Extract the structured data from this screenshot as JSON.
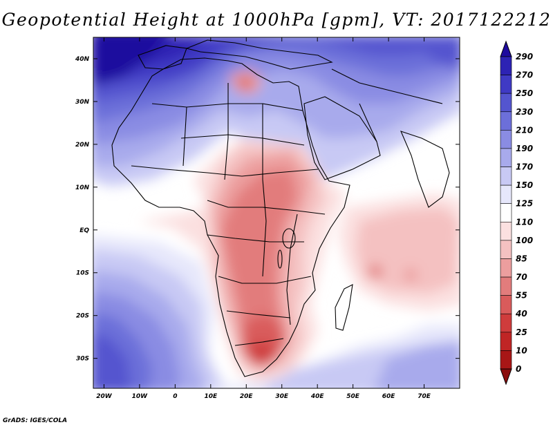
{
  "title": "Geopotential Height at 1000hPa [gpm], VT: 2017122212",
  "credit": "GrADS: IGES/COLA",
  "map": {
    "lon_range": [
      -23,
      80
    ],
    "lat_range": [
      -37,
      45
    ],
    "x_ticks": [
      {
        "lon": -20,
        "label": "20W"
      },
      {
        "lon": -10,
        "label": "10W"
      },
      {
        "lon": 0,
        "label": "0"
      },
      {
        "lon": 10,
        "label": "10E"
      },
      {
        "lon": 20,
        "label": "20E"
      },
      {
        "lon": 30,
        "label": "30E"
      },
      {
        "lon": 40,
        "label": "40E"
      },
      {
        "lon": 50,
        "label": "50E"
      },
      {
        "lon": 60,
        "label": "60E"
      },
      {
        "lon": 70,
        "label": "70E"
      }
    ],
    "y_ticks": [
      {
        "lat": 40,
        "label": "40N"
      },
      {
        "lat": 30,
        "label": "30N"
      },
      {
        "lat": 20,
        "label": "20N"
      },
      {
        "lat": 10,
        "label": "10N"
      },
      {
        "lat": 0,
        "label": "EQ"
      },
      {
        "lat": -10,
        "label": "10S"
      },
      {
        "lat": -20,
        "label": "20S"
      },
      {
        "lat": -30,
        "label": "30S"
      }
    ]
  },
  "colorbar": {
    "levels": [
      "290",
      "270",
      "250",
      "230",
      "210",
      "190",
      "170",
      "150",
      "125",
      "110",
      "100",
      "85",
      "70",
      "55",
      "40",
      "25",
      "10",
      "0"
    ],
    "colors": [
      "#1e0b9e",
      "#2d23b4",
      "#3f3ac4",
      "#5455cf",
      "#6c6fd9",
      "#8a8ce3",
      "#a8aaec",
      "#c8c9f4",
      "#e6e7fb",
      "#ffffff",
      "#fbe0e0",
      "#f4c1c1",
      "#ec9e9e",
      "#e27c7c",
      "#d95b5b",
      "#cf3c3c",
      "#c02525",
      "#a81616",
      "#8b0d0d"
    ]
  }
}
